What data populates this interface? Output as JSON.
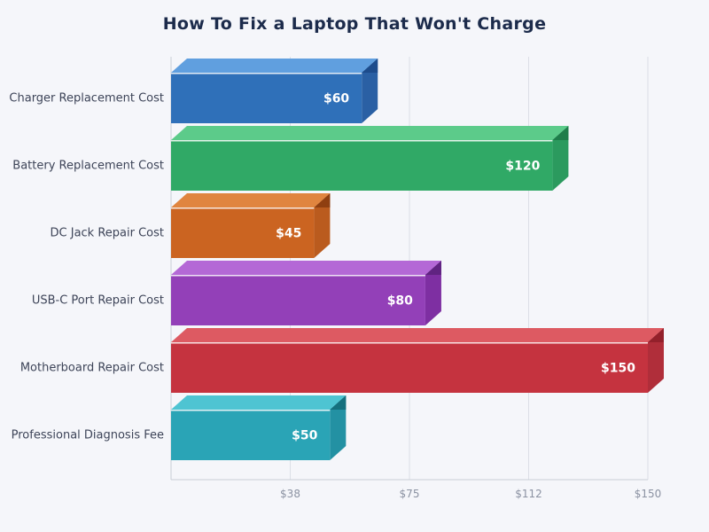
{
  "chart_data": {
    "type": "bar",
    "orientation": "horizontal",
    "title": "How To Fix a Laptop That Won't Charge",
    "categories": [
      "Charger Replacement Cost",
      "Battery Replacement Cost",
      "DC Jack Repair Cost",
      "USB-C Port Repair Cost",
      "Motherboard Repair Cost",
      "Professional Diagnosis Fee"
    ],
    "values": [
      60,
      120,
      45,
      80,
      150,
      50
    ],
    "value_labels": [
      "$60",
      "$120",
      "$45",
      "$80",
      "$150",
      "$50"
    ],
    "xlabel": "",
    "ylabel": "",
    "xlim": [
      0,
      150
    ],
    "x_ticks": [
      {
        "value": 37.5,
        "label": "$38"
      },
      {
        "value": 75,
        "label": "$75"
      },
      {
        "value": 112.5,
        "label": "$112"
      },
      {
        "value": 150,
        "label": "$150"
      }
    ],
    "grid": true,
    "legend": false,
    "bar_style": "3d",
    "bar_colors": [
      {
        "front": "#2F70B9",
        "top": "#609FDF",
        "side": "#2A60A4",
        "corner": "#1D4C8C"
      },
      {
        "front": "#30A966",
        "top": "#5CCB8A",
        "side": "#2B9A5E",
        "corner": "#1F7D4A"
      },
      {
        "front": "#CB6421",
        "top": "#E0853F",
        "side": "#BA5B1E",
        "corner": "#8F3F10"
      },
      {
        "front": "#9340B8",
        "top": "#B468D6",
        "side": "#7E2FA2",
        "corner": "#602381"
      },
      {
        "front": "#C5333F",
        "top": "#DD5A62",
        "side": "#B02E3A",
        "corner": "#93202B"
      },
      {
        "front": "#2AA4B6",
        "top": "#4EC4D2",
        "side": "#2391A3",
        "corner": "#15707E"
      }
    ],
    "colors": {
      "background": "#F5F6FA",
      "title_text": "#1C2B4B",
      "category_label_text": "#3D4458",
      "tick_label_text": "#8B92A2",
      "gridline": "#DCDFE7",
      "axis_line": "#C9CDD7",
      "value_label_text": "#FFFFFF"
    }
  }
}
